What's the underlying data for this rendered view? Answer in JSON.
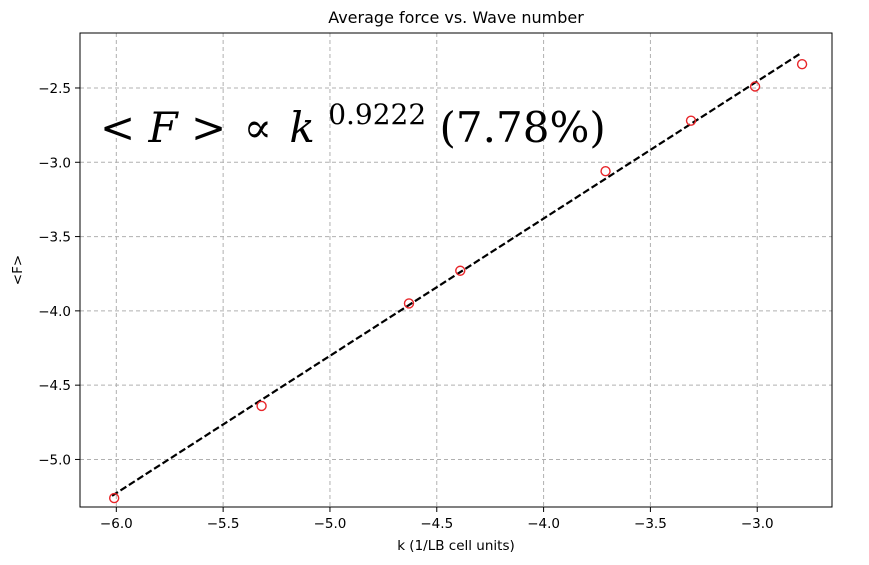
{
  "chart_data": {
    "type": "scatter",
    "title": "Average force vs. Wave number",
    "xlabel": "k (1/LB cell units)",
    "ylabel": "<F>",
    "xlim": [
      -6.17,
      -2.65
    ],
    "ylim": [
      -5.32,
      -2.13
    ],
    "xticks": [
      -6.0,
      -5.5,
      -5.0,
      -4.5,
      -4.0,
      -3.5,
      -3.0
    ],
    "xtick_labels": [
      "−6.0",
      "−5.5",
      "−5.0",
      "−4.5",
      "−4.0",
      "−3.5",
      "−3.0"
    ],
    "yticks": [
      -5.0,
      -4.5,
      -4.0,
      -3.5,
      -3.0,
      -2.5
    ],
    "ytick_labels": [
      "−5.0",
      "−4.5",
      "−4.0",
      "−3.5",
      "−3.0",
      "−2.5"
    ],
    "grid": true,
    "series": [
      {
        "kind": "points",
        "marker": "open-circle",
        "color": "#e8262a",
        "x": [
          -6.01,
          -5.32,
          -4.63,
          -4.39,
          -3.71,
          -3.31,
          -3.01,
          -2.79
        ],
        "y": [
          -5.26,
          -4.64,
          -3.95,
          -3.73,
          -3.06,
          -2.72,
          -2.49,
          -2.34
        ]
      },
      {
        "kind": "fit-line",
        "style": "dashed",
        "color": "#000000",
        "x": [
          -6.02,
          -2.8
        ],
        "y": [
          -5.245,
          -2.27
        ]
      }
    ],
    "annotations": [
      {
        "lhs": "< F >",
        "relation": "∝",
        "base": "k",
        "exponent": "0.9222",
        "suffix": "(7.78%)"
      }
    ]
  }
}
